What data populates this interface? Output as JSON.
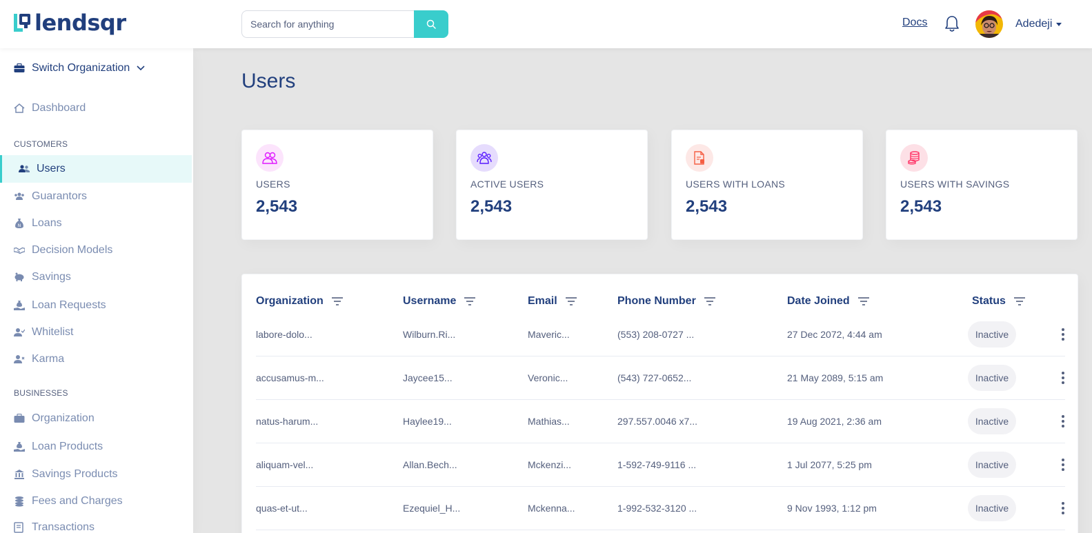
{
  "brand": {
    "name": "lendsqr",
    "accent": "#39cdcc",
    "primary": "#213f7d"
  },
  "header": {
    "search_placeholder": "Search for anything",
    "docs_label": "Docs",
    "user_name": "Adedeji"
  },
  "sidebar": {
    "switch_org_label": "Switch Organization",
    "dashboard_label": "Dashboard",
    "customers_title": "CUSTOMERS",
    "customers": [
      {
        "label": "Users",
        "icon": "users-icon"
      },
      {
        "label": "Guarantors",
        "icon": "guarantors-icon"
      },
      {
        "label": "Loans",
        "icon": "loans-icon"
      },
      {
        "label": "Decision Models",
        "icon": "handshake-icon"
      },
      {
        "label": "Savings",
        "icon": "piggy-bank-icon"
      },
      {
        "label": "Loan Requests",
        "icon": "loan-request-icon"
      },
      {
        "label": "Whitelist",
        "icon": "user-check-icon"
      },
      {
        "label": "Karma",
        "icon": "user-times-icon"
      }
    ],
    "businesses_title": "BUSINESSES",
    "businesses": [
      {
        "label": "Organization",
        "icon": "briefcase-icon"
      },
      {
        "label": "Loan Products",
        "icon": "loan-request-icon"
      },
      {
        "label": "Savings Products",
        "icon": "bank-icon"
      },
      {
        "label": "Fees and Charges",
        "icon": "coins-icon"
      },
      {
        "label": "Transactions",
        "icon": "transactions-icon"
      }
    ]
  },
  "main": {
    "title": "Users",
    "stats": [
      {
        "label": "USERS",
        "value": "2,543",
        "icon": "users-icon",
        "bg": "#fce4fc",
        "color": "#df18ff"
      },
      {
        "label": "ACTIVE USERS",
        "value": "2,543",
        "icon": "active-users-icon",
        "bg": "#e6dcfd",
        "color": "#5718ff"
      },
      {
        "label": "USERS WITH LOANS",
        "value": "2,543",
        "icon": "loan-document-icon",
        "bg": "#fde8e6",
        "color": "#f55f44"
      },
      {
        "label": "USERS WITH SAVINGS",
        "value": "2,543",
        "icon": "coins-icon",
        "bg": "#fde0e6",
        "color": "#ff3366"
      }
    ],
    "table": {
      "columns": [
        "Organization",
        "Username",
        "Email",
        "Phone Number",
        "Date Joined",
        "Status"
      ],
      "rows": [
        {
          "organization": "labore-dolo...",
          "username": "Wilburn.Ri...",
          "email": "Maveric...",
          "phone": "(553) 208-0727 ...",
          "date": "27 Dec 2072, 4:44 am",
          "status": "Inactive"
        },
        {
          "organization": "accusamus-m...",
          "username": "Jaycee15...",
          "email": "Veronic...",
          "phone": "(543) 727-0652...",
          "date": "21 May 2089, 5:15 am",
          "status": "Inactive"
        },
        {
          "organization": "natus-harum...",
          "username": "Haylee19...",
          "email": "Mathias...",
          "phone": "297.557.0046 x7...",
          "date": "19 Aug 2021, 2:36 am",
          "status": "Inactive"
        },
        {
          "organization": "aliquam-vel...",
          "username": "Allan.Bech...",
          "email": "Mckenzi...",
          "phone": "1-592-749-9116 ...",
          "date": "1 Jul 2077, 5:25 pm",
          "status": "Inactive"
        },
        {
          "organization": "quas-et-ut...",
          "username": "Ezequiel_H...",
          "email": "Mckenna...",
          "phone": "1-992-532-3120 ...",
          "date": "9 Nov 1993, 1:12 pm",
          "status": "Inactive"
        }
      ]
    }
  }
}
